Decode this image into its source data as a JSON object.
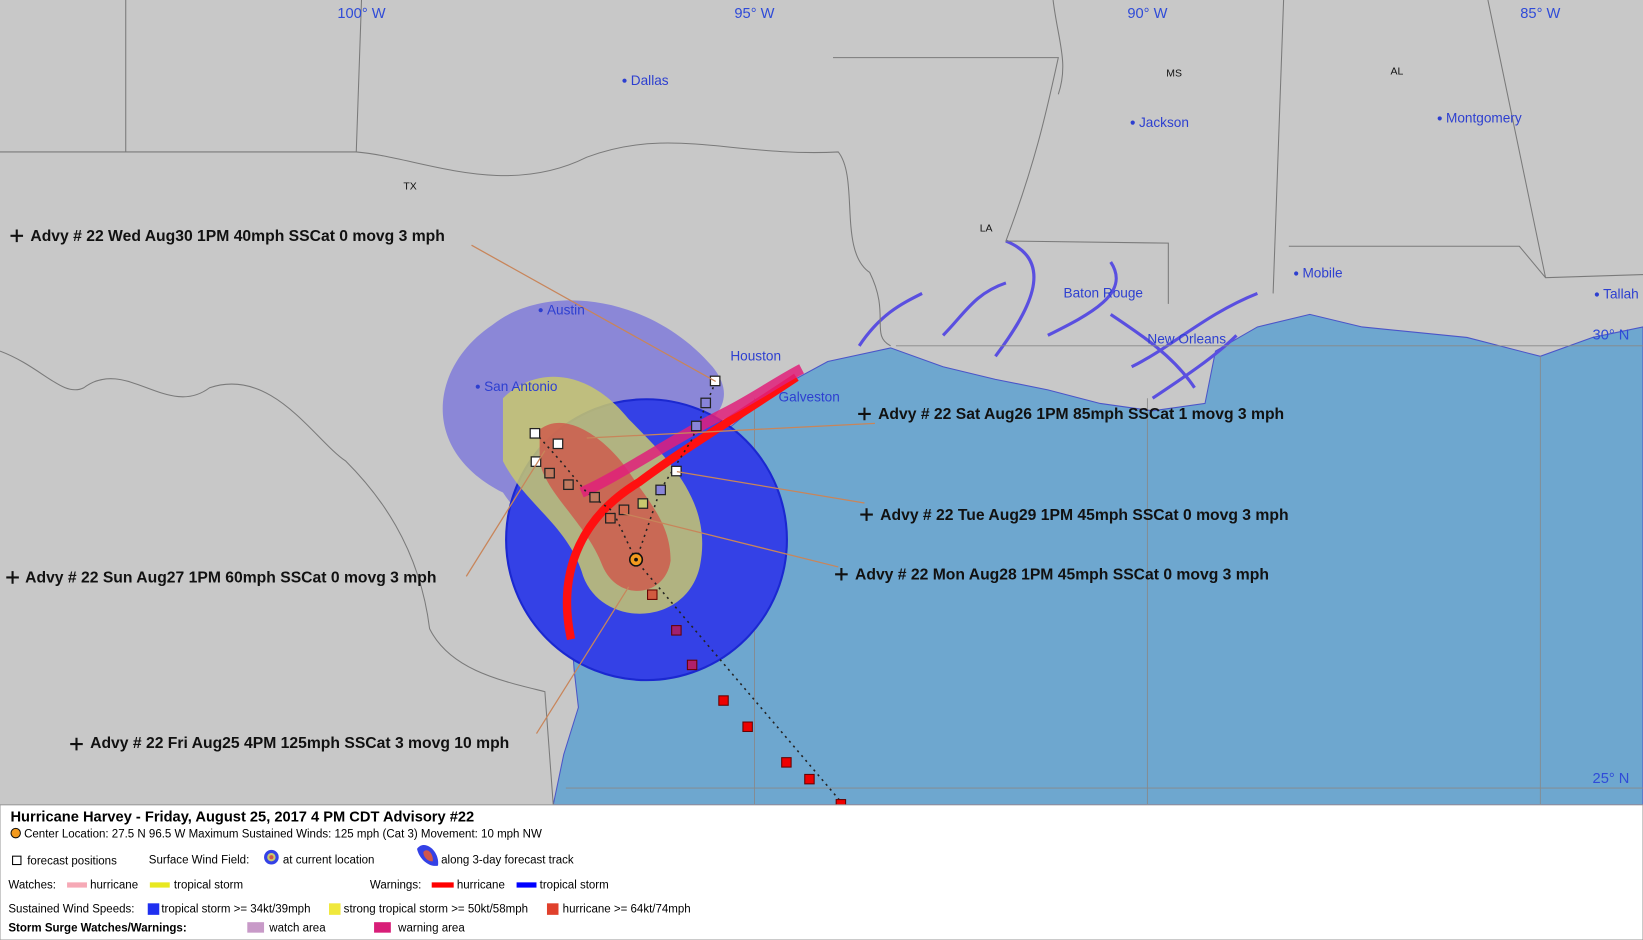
{
  "map": {
    "longitude_labels": [
      "100° W",
      "95° W",
      "90° W",
      "85° W"
    ],
    "latitude_labels": [
      "30° N",
      "25° N"
    ],
    "states": [
      "TX",
      "LA",
      "MS",
      "AL"
    ],
    "cities": [
      "Dallas",
      "Jackson",
      "Montgomery",
      "Austin",
      "San Antonio",
      "Houston",
      "Galveston",
      "Baton Rouge",
      "New Orleans",
      "Mobile",
      "Tallah"
    ],
    "advisories": [
      "Advy # 22 Wed Aug30 1PM  40mph SSCat 0 movg 3 mph",
      "Advy # 22 Sat Aug26 1PM  85mph SSCat 1 movg 3 mph",
      "Advy # 22 Tue Aug29 1PM  45mph SSCat 0 movg 3 mph",
      "Advy # 22 Mon Aug28 1PM  45mph SSCat 0 movg 3 mph",
      "Advy # 22 Sun Aug27 1PM  60mph SSCat 0 movg 3 mph",
      "Advy # 22 Fri Aug25 4PM  125mph SSCat 3 movg 10 mph"
    ]
  },
  "legend": {
    "title": "Hurricane Harvey  -  Friday, August 25, 2017  4 PM CDT   Advisory #22",
    "center_line": "Center Location: 27.5 N  96.5 W   Maximum Sustained Winds: 125 mph (Cat 3) Movement: 10 mph NW",
    "forecast_positions": "forecast positions",
    "surface_wind_field": "Surface Wind Field:",
    "at_current_location": "at current location",
    "along_track": "along 3-day forecast track",
    "watches": "Watches:",
    "watch_hurricane": "hurricane",
    "watch_tropical_storm": "tropical storm",
    "warnings": "Warnings:",
    "warning_hurricane": "hurricane",
    "warning_tropical_storm": "tropical storm",
    "sustained_wind_speeds": "Sustained Wind Speeds:",
    "speed_tropical_storm": "tropical storm >= 34kt/39mph",
    "speed_strong_tropical_storm": "strong tropical storm >= 50kt/58mph",
    "speed_hurricane": "hurricane >= 64kt/74mph",
    "storm_surge": "Storm Surge Watches/Warnings:",
    "watch_area": "watch area",
    "warning_area": "warning area"
  }
}
